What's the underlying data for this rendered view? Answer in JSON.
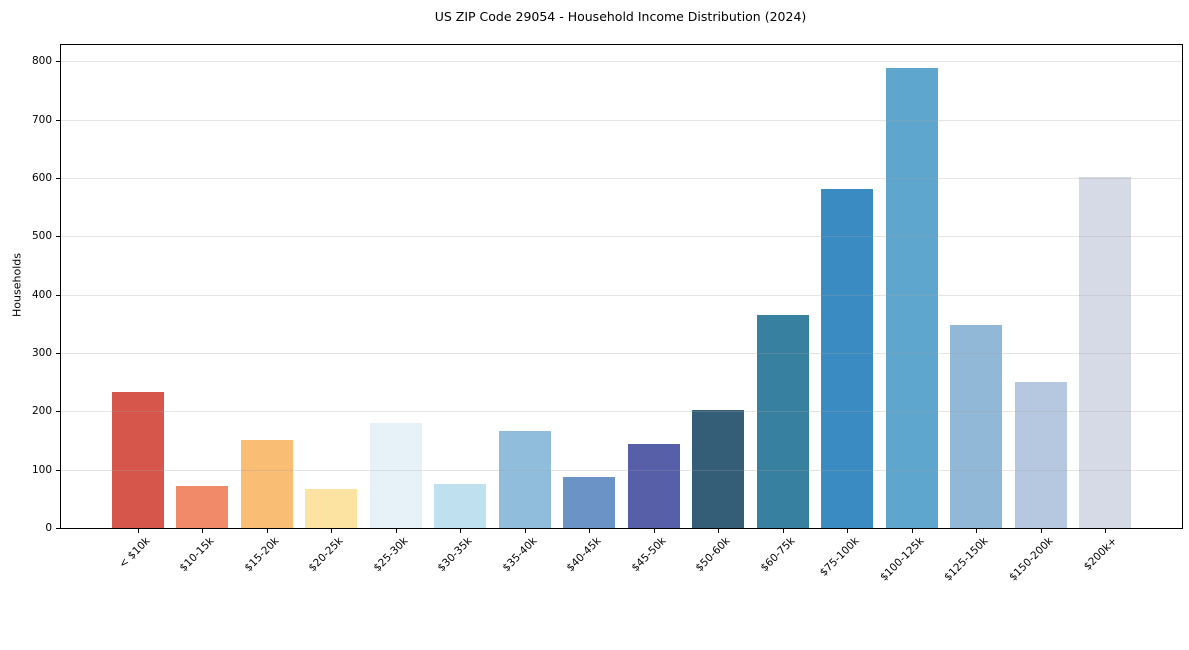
{
  "chart_data": {
    "type": "bar",
    "title": "US ZIP Code 29054 - Household Income Distribution (2024)",
    "xlabel": "",
    "ylabel": "Households",
    "categories": [
      "< $10k",
      "$10-15k",
      "$15-20k",
      "$20-25k",
      "$25-30k",
      "$30-35k",
      "$35-40k",
      "$40-45k",
      "$45-50k",
      "$50-60k",
      "$60-75k",
      "$75-100k",
      "$100-125k",
      "$125-150k",
      "$150-200k",
      "$200k+"
    ],
    "values": [
      233,
      72,
      151,
      67,
      180,
      75,
      167,
      87,
      144,
      202,
      365,
      582,
      788,
      348,
      250,
      602
    ],
    "bar_colors": [
      "#d6564c",
      "#f18a68",
      "#fabd74",
      "#fde3a2",
      "#e7f1f8",
      "#bfe0ee",
      "#91bddc",
      "#6b93c5",
      "#575fa8",
      "#345e78",
      "#38809f",
      "#398bc2",
      "#5ea6ce",
      "#92b8d8",
      "#b5c8e0",
      "#d6d9e6"
    ],
    "yticks": [
      0,
      100,
      200,
      300,
      400,
      500,
      600,
      700,
      800
    ],
    "ylim": [
      0,
      828
    ],
    "grid": "horizontal",
    "legend": "none",
    "x_tick_rotation_deg": 45
  }
}
